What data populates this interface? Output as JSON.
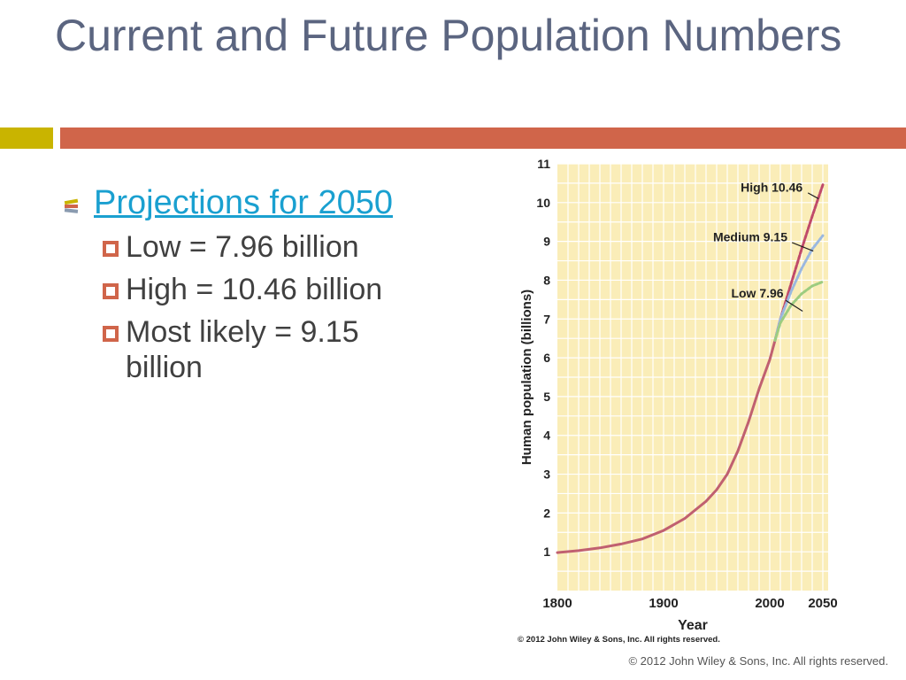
{
  "slide": {
    "title": "Current and Future Population Numbers",
    "bullet_main": "Projections for 2050",
    "sub_bullets": [
      "Low = 7.96 billion",
      "High = 10.46 billion",
      "Most likely = 9.15 billion"
    ],
    "footer": "© 2012 John Wiley & Sons, Inc. All rights reserved."
  },
  "colors": {
    "title": "#5b6580",
    "accent_bar": "#d0654a",
    "accent_block": "#c9b400",
    "link": "#1aa0d0",
    "chart_bg": "#faedb8",
    "grid": "#ffffff",
    "line_hist": "#c06070",
    "line_high": "#c04a6a",
    "line_medium": "#9ab8e0",
    "line_low": "#9ccc80"
  },
  "chart_data": {
    "type": "line",
    "xlabel": "Year",
    "ylabel": "Human population (billions)",
    "xlim": [
      1800,
      2055
    ],
    "ylim": [
      0,
      11
    ],
    "x_ticks": [
      1800,
      1900,
      2000,
      2050
    ],
    "y_ticks": [
      1,
      2,
      3,
      4,
      5,
      6,
      7,
      8,
      9,
      10,
      11
    ],
    "grid": true,
    "credit": "© 2012 John Wiley & Sons, Inc. All rights reserved.",
    "series": [
      {
        "name": "",
        "x": [
          1800,
          1820,
          1840,
          1860,
          1880,
          1900,
          1920,
          1940,
          1950,
          1960,
          1970,
          1980,
          1990,
          2000,
          2005
        ],
        "y": [
          0.98,
          1.03,
          1.1,
          1.2,
          1.33,
          1.55,
          1.86,
          2.3,
          2.6,
          3.0,
          3.6,
          4.35,
          5.2,
          5.95,
          6.45
        ]
      },
      {
        "name": "High 10.46",
        "x": [
          2005,
          2010,
          2020,
          2030,
          2040,
          2050
        ],
        "y": [
          6.45,
          7.0,
          7.9,
          8.8,
          9.65,
          10.46
        ]
      },
      {
        "name": "Medium 9.15",
        "x": [
          2005,
          2010,
          2020,
          2030,
          2040,
          2050
        ],
        "y": [
          6.45,
          7.0,
          7.7,
          8.3,
          8.8,
          9.15
        ]
      },
      {
        "name": "Low 7.96",
        "x": [
          2005,
          2010,
          2020,
          2030,
          2040,
          2050
        ],
        "y": [
          6.45,
          6.9,
          7.35,
          7.65,
          7.85,
          7.96
        ]
      }
    ],
    "annotations": [
      "High 10.46",
      "Medium 9.15",
      "Low 7.96"
    ]
  }
}
